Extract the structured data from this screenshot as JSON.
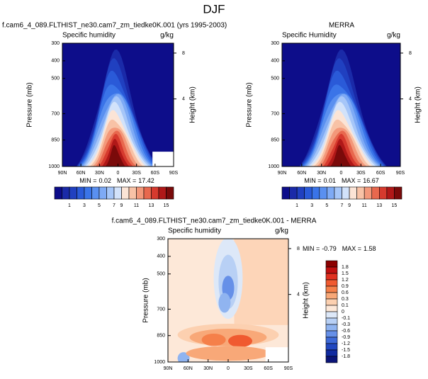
{
  "suptitle": "DJF",
  "chart_data": [
    {
      "type": "contour",
      "title": "f.cam6_4_089.FLTHIST_ne30.cam7_zm_tiedke0K.001 (yrs 1995-2003)",
      "left_label": "Specific humidity",
      "right_label": "g/kg",
      "ylabel": "Pressure (mb)",
      "y2label": "Height (km)",
      "categories": [
        "90N",
        "60N",
        "30N",
        "0",
        "30S",
        "60S",
        "90S"
      ],
      "ylim": [
        1000,
        300
      ],
      "yticks": [
        300,
        400,
        500,
        700,
        850,
        1000
      ],
      "y2ticks": [
        4,
        8
      ],
      "min_label": "MIN =",
      "min": 0.02,
      "max_label": "MAX =",
      "max": 17.42,
      "colorbar": {
        "levels": [
          1,
          3,
          5,
          7,
          9,
          11,
          13,
          15
        ],
        "colors": [
          "#0d0d8a",
          "#1a2aa8",
          "#2040c0",
          "#2a5ad8",
          "#3a74e8",
          "#5a90f0",
          "#7eaaf5",
          "#a6c6f8",
          "#d2e2fa",
          "#fbe4d6",
          "#f8c2a6",
          "#f3987a",
          "#e8684e",
          "#d63a2e",
          "#b01818",
          "#7a0a0a"
        ]
      }
    },
    {
      "type": "contour",
      "title": "MERRA",
      "left_label": "Specific Humidity",
      "right_label": "g/kg",
      "ylabel": "Pressure (mb)",
      "y2label": "Height (km)",
      "categories": [
        "90N",
        "60N",
        "30N",
        "0",
        "30S",
        "60S",
        "90S"
      ],
      "ylim": [
        1000,
        300
      ],
      "yticks": [
        300,
        400,
        500,
        700,
        850,
        1000
      ],
      "y2ticks": [
        4,
        8
      ],
      "min_label": "MIN =",
      "min": 0.01,
      "max_label": "MAX =",
      "max": 16.67,
      "colorbar": {
        "levels": [
          1,
          3,
          5,
          7,
          9,
          11,
          13,
          15
        ],
        "colors": [
          "#0d0d8a",
          "#1a2aa8",
          "#2040c0",
          "#2a5ad8",
          "#3a74e8",
          "#5a90f0",
          "#7eaaf5",
          "#a6c6f8",
          "#d2e2fa",
          "#fbe4d6",
          "#f8c2a6",
          "#f3987a",
          "#e8684e",
          "#d63a2e",
          "#b01818",
          "#7a0a0a"
        ]
      }
    },
    {
      "type": "contour",
      "title": "f.cam6_4_089.FLTHIST_ne30.cam7_zm_tiedke0K.001 - MERRA",
      "left_label": "Specific humidity",
      "right_label": "g/kg",
      "ylabel": "Pressure (mb)",
      "y2label": "Height (km)",
      "categories": [
        "90N",
        "60N",
        "30N",
        "0",
        "30S",
        "60S",
        "90S"
      ],
      "ylim": [
        1000,
        300
      ],
      "yticks": [
        300,
        400,
        500,
        700,
        850,
        1000
      ],
      "y2ticks": [
        4,
        8
      ],
      "min_label": "MIN =",
      "min": -0.79,
      "max_label": "MAX =",
      "max": 1.58,
      "colorbar": {
        "levels": [
          1.8,
          1.5,
          1.2,
          0.9,
          0.6,
          0.3,
          0.1,
          0,
          -0.1,
          -0.3,
          -0.6,
          -0.9,
          -1.2,
          -1.5,
          -1.8
        ],
        "colors": [
          "#8b0000",
          "#c01010",
          "#e03020",
          "#f05a30",
          "#f5804a",
          "#f8a878",
          "#fcd0b0",
          "#fde8d8",
          "#dde8f8",
          "#b8d0f5",
          "#90b4f0",
          "#6690e8",
          "#3e6ad8",
          "#2248c0",
          "#102aa0",
          "#0a1478"
        ]
      }
    }
  ]
}
